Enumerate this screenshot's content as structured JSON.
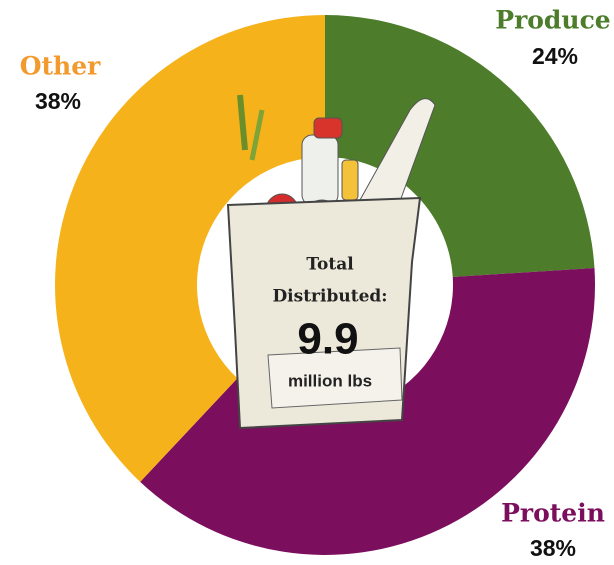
{
  "chart_data": {
    "type": "donut",
    "categories": [
      "Produce",
      "Protein",
      "Other"
    ],
    "values": [
      24,
      38,
      38
    ],
    "value_labels": [
      "24%",
      "38%",
      "38%"
    ],
    "colors": [
      "#4d7c2b",
      "#7b0e5d",
      "#f6b21b"
    ],
    "center_text": [
      "Total",
      "Distributed:"
    ],
    "total_value": 9.9,
    "total_unit": "million lbs"
  }
}
